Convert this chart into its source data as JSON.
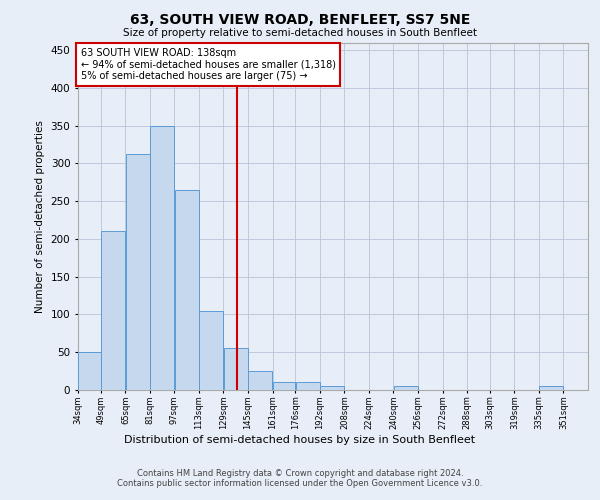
{
  "title": "63, SOUTH VIEW ROAD, BENFLEET, SS7 5NE",
  "subtitle": "Size of property relative to semi-detached houses in South Benfleet",
  "xlabel": "Distribution of semi-detached houses by size in South Benfleet",
  "ylabel": "Number of semi-detached properties",
  "footer_line1": "Contains HM Land Registry data © Crown copyright and database right 2024.",
  "footer_line2": "Contains public sector information licensed under the Open Government Licence v3.0.",
  "annotation_title": "63 SOUTH VIEW ROAD: 138sqm",
  "annotation_line2": "← 94% of semi-detached houses are smaller (1,318)",
  "annotation_line3": "5% of semi-detached houses are larger (75) →",
  "property_size": 138,
  "bar_left_edges": [
    34,
    49,
    65,
    81,
    97,
    113,
    129,
    145,
    161,
    176,
    192,
    208,
    224,
    240,
    256,
    272,
    288,
    303,
    319,
    335
  ],
  "bar_widths": [
    15,
    16,
    16,
    16,
    16,
    16,
    16,
    16,
    15,
    16,
    16,
    16,
    16,
    16,
    16,
    16,
    15,
    16,
    16,
    16
  ],
  "bar_heights": [
    50,
    211,
    312,
    350,
    265,
    105,
    55,
    25,
    11,
    10,
    5,
    0,
    0,
    5,
    0,
    0,
    0,
    0,
    0,
    5
  ],
  "tick_labels": [
    "34sqm",
    "49sqm",
    "65sqm",
    "81sqm",
    "97sqm",
    "113sqm",
    "129sqm",
    "145sqm",
    "161sqm",
    "176sqm",
    "192sqm",
    "208sqm",
    "224sqm",
    "240sqm",
    "256sqm",
    "272sqm",
    "288sqm",
    "303sqm",
    "319sqm",
    "335sqm",
    "351sqm"
  ],
  "bar_color": "#c5d8ed",
  "bar_edge_color": "#5b9bd5",
  "grid_color": "#b8c4d8",
  "vline_color": "#cc0000",
  "annotation_box_edge": "#cc0000",
  "annotation_box_fill": "#ffffff",
  "background_color": "#e8eef7",
  "ylim": [
    0,
    460
  ],
  "xlim_min": 34,
  "xlim_max": 367
}
